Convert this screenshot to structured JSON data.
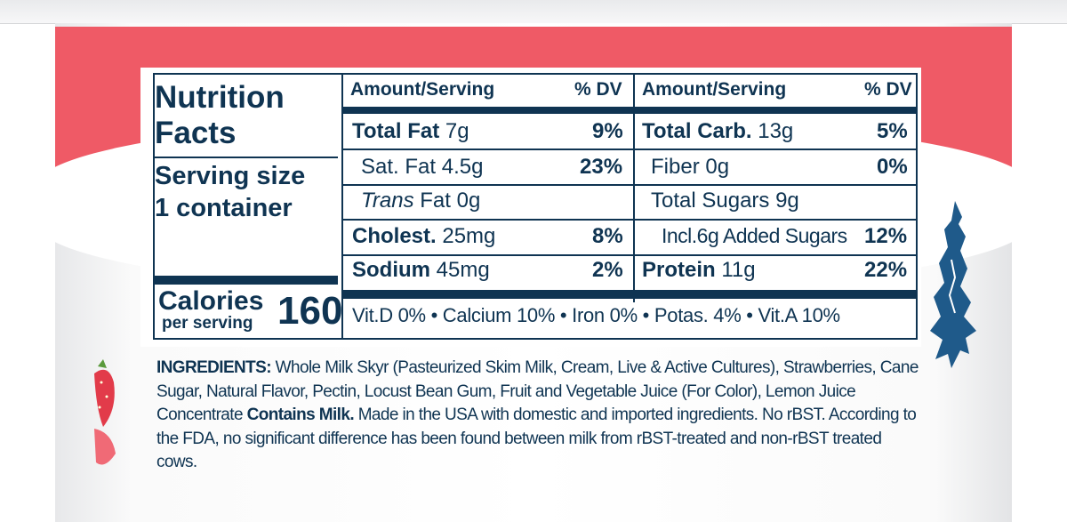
{
  "label": {
    "title": "Nutrition Facts",
    "serving_label": "Serving size",
    "serving_value": "1 container",
    "calories_label": "Calories",
    "calories_sub": "per serving",
    "calories_value": "160",
    "col_header_amount": "Amount/Serving",
    "col_header_dv": "% DV",
    "left_rows": [
      {
        "name": "Total Fat",
        "amount": "7g",
        "dv": "9%"
      },
      {
        "name": "Sat. Fat",
        "amount": "4.5g",
        "dv": "23%"
      },
      {
        "name": "Trans",
        "amount": "Fat 0g",
        "dv": ""
      },
      {
        "name": "Cholest.",
        "amount": "25mg",
        "dv": "8%"
      },
      {
        "name": "Sodium",
        "amount": "45mg",
        "dv": "2%"
      }
    ],
    "right_rows": [
      {
        "name": "Total Carb.",
        "amount": "13g",
        "dv": "5%"
      },
      {
        "name": "Fiber",
        "amount": "0g",
        "dv": "0%"
      },
      {
        "name": "Total Sugars",
        "amount": "9g",
        "dv": ""
      },
      {
        "name": "Incl.6g Added Sugars",
        "amount": "",
        "dv": "12%"
      },
      {
        "name": "Protein",
        "amount": "11g",
        "dv": "22%"
      }
    ],
    "vitamins": "Vit.D 0% • Calcium 10% • Iron 0% • Potas. 4% • Vit.A 10%"
  },
  "ingredients": {
    "heading": "INGREDIENTS:",
    "text": "Whole Milk Skyr (Pasteurized Skim Milk, Cream, Live & Active Cultures), Strawberries, Cane Sugar, Natural Flavor, Pectin, Locust Bean Gum, Fruit and Vegetable Juice (For Color), Lemon Juice Concentrate",
    "allergen": "Contains Milk.",
    "note": "Made in the USA with domestic and imported ingredients. No rBST. According to the FDA, no significant difference has been found between milk from rBST-treated and non-rBST treated cows."
  },
  "colors": {
    "ink": "#0f3452",
    "band": "#ef5a66",
    "cup": "#ffffff"
  },
  "icons": [
    "fox-icon",
    "strawberry-icon"
  ]
}
